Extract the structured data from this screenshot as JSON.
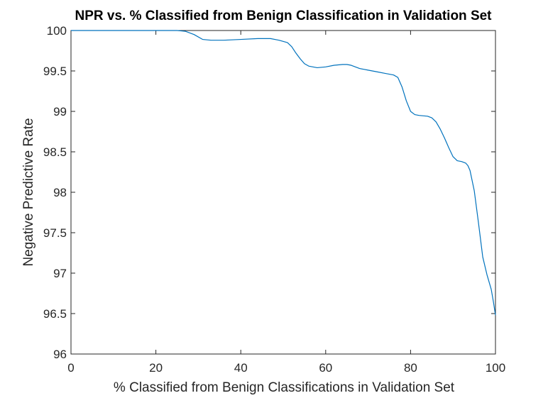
{
  "chart_data": {
    "type": "line",
    "title": "NPR vs. % Classified from Benign Classification in Validation Set",
    "xlabel": "% Classified from Benign Classifications in Validation Set",
    "ylabel": "Negative Predictive Rate",
    "xlim": [
      0,
      100
    ],
    "ylim": [
      96,
      100
    ],
    "xticks": [
      "0",
      "20",
      "40",
      "60",
      "80",
      "100"
    ],
    "yticks": [
      "96",
      "96.5",
      "97",
      "97.5",
      "98",
      "98.5",
      "99",
      "99.5",
      "100"
    ],
    "grid": false,
    "line_color": "#0072bd",
    "series": [
      {
        "x": [
          0,
          10,
          20,
          25,
          27,
          29,
          31,
          33,
          36,
          40,
          44,
          47,
          49,
          51,
          52,
          53,
          54,
          55,
          56,
          57,
          58,
          60,
          62,
          64,
          65,
          66,
          67,
          68,
          69,
          70,
          72,
          74,
          76,
          77,
          78,
          79,
          80,
          81,
          82,
          84,
          85,
          86,
          87,
          88,
          89,
          90,
          91,
          92,
          93,
          93.5,
          94,
          95,
          96,
          97,
          98,
          99,
          99.5,
          100
        ],
        "y": [
          100,
          100,
          100,
          100,
          99.99,
          99.95,
          99.89,
          99.88,
          99.88,
          99.89,
          99.9,
          99.9,
          99.88,
          99.85,
          99.8,
          99.72,
          99.65,
          99.59,
          99.56,
          99.55,
          99.54,
          99.55,
          99.57,
          99.58,
          99.58,
          99.57,
          99.55,
          99.53,
          99.52,
          99.51,
          99.49,
          99.47,
          99.45,
          99.42,
          99.3,
          99.13,
          99.0,
          98.96,
          98.95,
          98.94,
          98.92,
          98.87,
          98.78,
          98.67,
          98.55,
          98.44,
          98.39,
          98.38,
          98.36,
          98.33,
          98.27,
          98.02,
          97.62,
          97.2,
          96.98,
          96.8,
          96.65,
          96.48
        ]
      }
    ]
  }
}
